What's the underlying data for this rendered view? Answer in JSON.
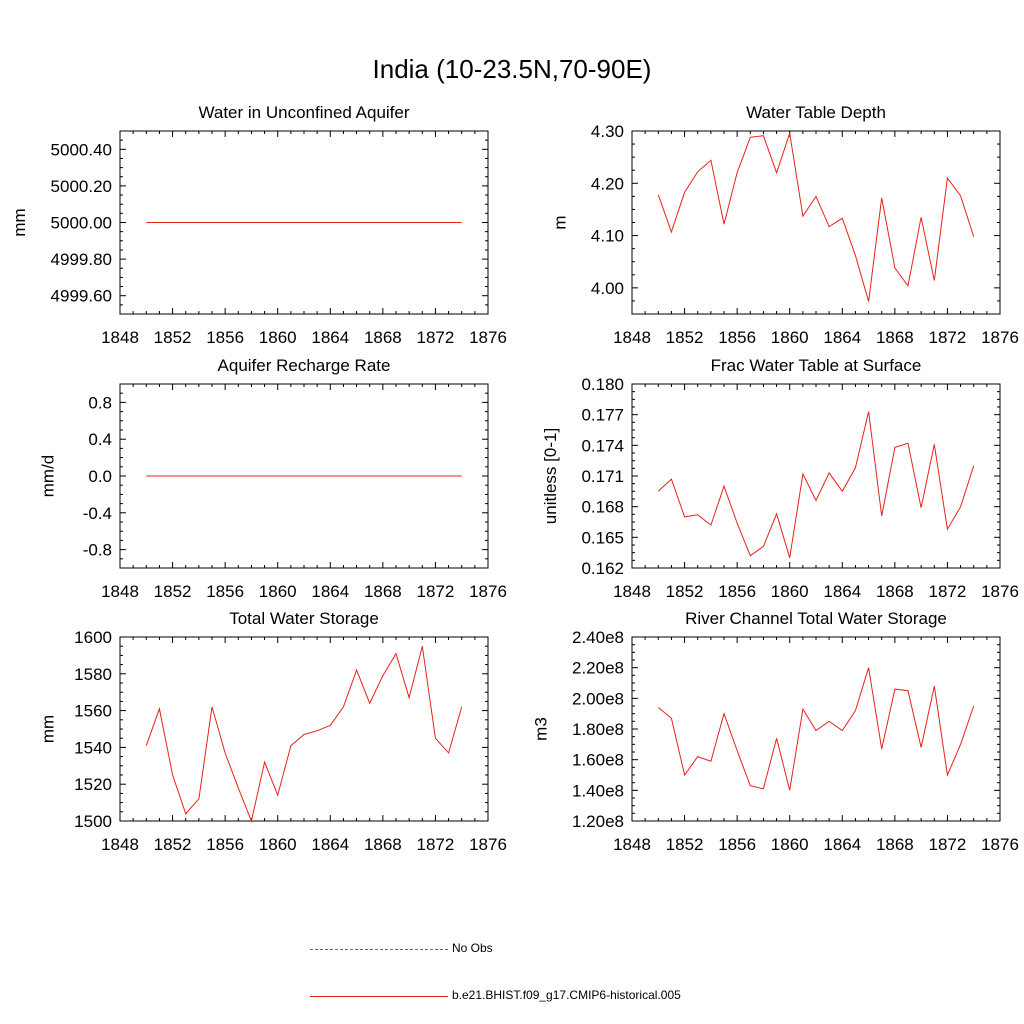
{
  "title": "India (10-23.5N,70-90E)",
  "colors": {
    "series": "#e8211b",
    "obs": "#5c5ca8",
    "axis": "#000000"
  },
  "legend": {
    "obs_label": "No Obs",
    "model_label": "b.e21.BHIST.f09_g17.CMIP6-historical.005"
  },
  "x_years": [
    1850,
    1851,
    1852,
    1853,
    1854,
    1855,
    1856,
    1857,
    1858,
    1859,
    1860,
    1861,
    1862,
    1863,
    1864,
    1865,
    1866,
    1867,
    1868,
    1869,
    1870,
    1871,
    1872,
    1873,
    1874
  ],
  "chart_data": [
    {
      "type": "line",
      "title": "Water in Unconfined Aquifer",
      "ylabel": "mm",
      "xlim": [
        1848,
        1876
      ],
      "ylim": [
        4999.5,
        5000.5
      ],
      "x_ticks": [
        1848,
        1852,
        1856,
        1860,
        1864,
        1868,
        1872,
        1876
      ],
      "y_ticks": [
        4999.6,
        4999.8,
        5000.0,
        5000.2,
        5000.4
      ],
      "y_tick_labels": [
        "4999.60",
        "4999.80",
        "5000.00",
        "5000.20",
        "5000.40"
      ],
      "values": [
        5000,
        5000,
        5000,
        5000,
        5000,
        5000,
        5000,
        5000,
        5000,
        5000,
        5000,
        5000,
        5000,
        5000,
        5000,
        5000,
        5000,
        5000,
        5000,
        5000,
        5000,
        5000,
        5000,
        5000,
        5000
      ]
    },
    {
      "type": "line",
      "title": "Water Table Depth",
      "ylabel": "m",
      "xlim": [
        1848,
        1876
      ],
      "ylim": [
        3.95,
        4.3
      ],
      "x_ticks": [
        1848,
        1852,
        1856,
        1860,
        1864,
        1868,
        1872,
        1876
      ],
      "y_ticks": [
        4.0,
        4.1,
        4.2,
        4.3
      ],
      "y_tick_labels": [
        "4.00",
        "4.10",
        "4.20",
        "4.30"
      ],
      "values": [
        4.178,
        4.107,
        4.183,
        4.222,
        4.244,
        4.122,
        4.22,
        4.288,
        4.291,
        4.22,
        4.296,
        4.137,
        4.175,
        4.117,
        4.133,
        4.062,
        3.974,
        4.172,
        4.038,
        4.004,
        4.135,
        4.014,
        4.21,
        4.176,
        4.098
      ]
    },
    {
      "type": "line",
      "title": "Aquifer Recharge Rate",
      "ylabel": "mm/d",
      "xlim": [
        1848,
        1876
      ],
      "ylim": [
        -1.0,
        1.0
      ],
      "x_ticks": [
        1848,
        1852,
        1856,
        1860,
        1864,
        1868,
        1872,
        1876
      ],
      "y_ticks": [
        -0.8,
        -0.4,
        0.0,
        0.4,
        0.8
      ],
      "y_tick_labels": [
        "-0.8",
        "-0.4",
        "0.0",
        "0.4",
        "0.8"
      ],
      "values": [
        0,
        0,
        0,
        0,
        0,
        0,
        0,
        0,
        0,
        0,
        0,
        0,
        0,
        0,
        0,
        0,
        0,
        0,
        0,
        0,
        0,
        0,
        0,
        0,
        0
      ]
    },
    {
      "type": "line",
      "title": "Frac Water Table at Surface",
      "ylabel": "unitless [0-1]",
      "xlim": [
        1848,
        1876
      ],
      "ylim": [
        0.162,
        0.18
      ],
      "x_ticks": [
        1848,
        1852,
        1856,
        1860,
        1864,
        1868,
        1872,
        1876
      ],
      "y_ticks": [
        0.162,
        0.165,
        0.168,
        0.171,
        0.174,
        0.177,
        0.18
      ],
      "y_tick_labels": [
        "0.162",
        "0.165",
        "0.168",
        "0.171",
        "0.174",
        "0.177",
        "0.180"
      ],
      "values": [
        0.1695,
        0.1707,
        0.167,
        0.1672,
        0.1662,
        0.17,
        0.1664,
        0.1632,
        0.1641,
        0.1673,
        0.163,
        0.1712,
        0.1686,
        0.1713,
        0.1695,
        0.1718,
        0.1773,
        0.1671,
        0.1738,
        0.1742,
        0.1679,
        0.1741,
        0.1658,
        0.168,
        0.172
      ]
    },
    {
      "type": "line",
      "title": "Total Water Storage",
      "ylabel": "mm",
      "xlim": [
        1848,
        1876
      ],
      "ylim": [
        1500,
        1600
      ],
      "x_ticks": [
        1848,
        1852,
        1856,
        1860,
        1864,
        1868,
        1872,
        1876
      ],
      "y_ticks": [
        1500,
        1520,
        1540,
        1560,
        1580,
        1600
      ],
      "y_tick_labels": [
        "1500",
        "1520",
        "1540",
        "1560",
        "1580",
        "1600"
      ],
      "values": [
        1541,
        1561,
        1525,
        1504,
        1512,
        1562,
        1537,
        1518,
        1500,
        1532,
        1514,
        1541,
        1547,
        1549,
        1552,
        1562,
        1582,
        1564,
        1579,
        1591,
        1567,
        1595,
        1545,
        1537,
        1562
      ]
    },
    {
      "type": "line",
      "title": "River Channel Total Water Storage",
      "ylabel": "m3",
      "xlim": [
        1848,
        1876
      ],
      "ylim": [
        120000000,
        240000000
      ],
      "x_ticks": [
        1848,
        1852,
        1856,
        1860,
        1864,
        1868,
        1872,
        1876
      ],
      "y_ticks": [
        120000000,
        140000000,
        160000000,
        180000000,
        200000000,
        220000000,
        240000000
      ],
      "y_tick_labels": [
        "1.20e8",
        "1.40e8",
        "1.60e8",
        "1.80e8",
        "2.00e8",
        "2.20e8",
        "2.40e8"
      ],
      "values": [
        194000000,
        187000000,
        150000000,
        162000000,
        159000000,
        190000000,
        166000000,
        143000000,
        141000000,
        174000000,
        140000000,
        193000000,
        179000000,
        185000000,
        179000000,
        192000000,
        220000000,
        167000000,
        206000000,
        205000000,
        168000000,
        208000000,
        150000000,
        170000000,
        195000000
      ]
    }
  ]
}
